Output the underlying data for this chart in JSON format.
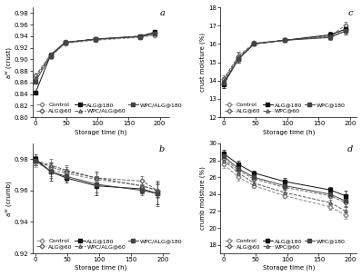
{
  "x": [
    0,
    24,
    48,
    96,
    168,
    192
  ],
  "panel_a": {
    "title": "a",
    "ylabel": "aᵂ (crust)",
    "xlabel": "Storage time (h)",
    "ylim": [
      0.8,
      0.99
    ],
    "yticks": [
      0.8,
      0.82,
      0.84,
      0.86,
      0.88,
      0.9,
      0.92,
      0.94,
      0.96,
      0.98
    ],
    "xticks": [
      0,
      50,
      100,
      150,
      200
    ],
    "xlim": [
      -5,
      215
    ],
    "series": {
      "Control": {
        "y": [
          0.868,
          0.905,
          0.928,
          0.933,
          0.938,
          0.942
        ],
        "err": [
          0.004,
          0.005,
          0.003,
          0.003,
          0.003,
          0.003
        ],
        "ls": "--",
        "marker": "D",
        "color": "#888888",
        "mfc": "white"
      },
      "ALG@60": {
        "y": [
          0.872,
          0.908,
          0.93,
          0.935,
          0.94,
          0.946
        ],
        "err": [
          0.003,
          0.004,
          0.003,
          0.003,
          0.003,
          0.003
        ],
        "ls": "--",
        "marker": "D",
        "color": "#666666",
        "mfc": "white"
      },
      "ALG@180": {
        "y": [
          0.843,
          0.907,
          0.929,
          0.935,
          0.94,
          0.947
        ],
        "err": [
          0.003,
          0.004,
          0.003,
          0.003,
          0.003,
          0.003
        ],
        "ls": "-",
        "marker": "s",
        "color": "#111111",
        "mfc": "#111111"
      },
      "WPC/ALG@60": {
        "y": [
          0.868,
          0.908,
          0.93,
          0.934,
          0.94,
          0.944
        ],
        "err": [
          0.003,
          0.004,
          0.003,
          0.003,
          0.003,
          0.003
        ],
        "ls": "--",
        "marker": "^",
        "color": "#555555",
        "mfc": "white"
      },
      "WPC/ALG@180": {
        "y": [
          0.862,
          0.906,
          0.929,
          0.935,
          0.939,
          0.944
        ],
        "err": [
          0.003,
          0.004,
          0.003,
          0.003,
          0.003,
          0.003
        ],
        "ls": "-",
        "marker": "s",
        "color": "#444444",
        "mfc": "#444444"
      }
    }
  },
  "panel_b": {
    "title": "b",
    "ylabel": "aᵂ (crumb)",
    "xlabel": "Storage time (h)",
    "ylim": [
      0.92,
      0.99
    ],
    "yticks": [
      0.92,
      0.94,
      0.96,
      0.98
    ],
    "xticks": [
      0,
      50,
      100,
      150,
      200
    ],
    "xlim": [
      -5,
      210
    ],
    "series": {
      "Control": {
        "y": [
          0.978,
          0.973,
          0.971,
          0.967,
          0.963,
          0.96
        ],
        "err": [
          0.003,
          0.004,
          0.003,
          0.004,
          0.003,
          0.005
        ],
        "ls": "--",
        "marker": "D",
        "color": "#888888",
        "mfc": "white"
      },
      "ALG@60": {
        "y": [
          0.979,
          0.975,
          0.972,
          0.968,
          0.966,
          0.96
        ],
        "err": [
          0.003,
          0.003,
          0.003,
          0.004,
          0.003,
          0.004
        ],
        "ls": "--",
        "marker": "D",
        "color": "#666666",
        "mfc": "white"
      },
      "ALG@180": {
        "y": [
          0.98,
          0.972,
          0.968,
          0.963,
          0.961,
          0.958
        ],
        "err": [
          0.003,
          0.006,
          0.003,
          0.006,
          0.003,
          0.007
        ],
        "ls": "-",
        "marker": "s",
        "color": "#111111",
        "mfc": "#111111"
      },
      "WPC/ALG@60": {
        "y": [
          0.979,
          0.976,
          0.973,
          0.968,
          0.963,
          0.96
        ],
        "err": [
          0.003,
          0.004,
          0.003,
          0.004,
          0.003,
          0.004
        ],
        "ls": "--",
        "marker": "^",
        "color": "#555555",
        "mfc": "white"
      },
      "WPC/ALG@180": {
        "y": [
          0.979,
          0.972,
          0.969,
          0.964,
          0.96,
          0.958
        ],
        "err": [
          0.003,
          0.004,
          0.003,
          0.005,
          0.003,
          0.008
        ],
        "ls": "-",
        "marker": "s",
        "color": "#444444",
        "mfc": "#444444"
      }
    }
  },
  "panel_c": {
    "title": "c",
    "ylabel": "crust moisture (%)",
    "xlabel": "Storage time (h)",
    "ylim": [
      12,
      18
    ],
    "yticks": [
      12,
      13,
      14,
      15,
      16,
      17,
      18
    ],
    "xticks": [
      0,
      50,
      100,
      150,
      200
    ],
    "xlim": [
      -5,
      210
    ],
    "series": {
      "Control": {
        "y": [
          13.8,
          15.2,
          16.0,
          16.2,
          16.4,
          16.8
        ],
        "err": [
          0.2,
          0.2,
          0.1,
          0.1,
          0.15,
          0.2
        ],
        "ls": "--",
        "marker": "D",
        "color": "#888888",
        "mfc": "white"
      },
      "ALG@60": {
        "y": [
          14.1,
          15.35,
          16.05,
          16.2,
          16.45,
          17.0
        ],
        "err": [
          0.2,
          0.2,
          0.1,
          0.1,
          0.15,
          0.2
        ],
        "ls": "--",
        "marker": "D",
        "color": "#666666",
        "mfc": "white"
      },
      "ALG@180": {
        "y": [
          13.8,
          15.2,
          16.0,
          16.2,
          16.5,
          16.8
        ],
        "err": [
          0.2,
          0.2,
          0.1,
          0.1,
          0.15,
          0.2
        ],
        "ls": "-",
        "marker": "s",
        "color": "#111111",
        "mfc": "#111111"
      },
      "WPC@60": {
        "y": [
          14.0,
          15.3,
          16.0,
          16.2,
          16.4,
          16.7
        ],
        "err": [
          0.2,
          0.2,
          0.1,
          0.1,
          0.15,
          0.2
        ],
        "ls": "--",
        "marker": "^",
        "color": "#555555",
        "mfc": "white"
      },
      "WPC@180": {
        "y": [
          13.9,
          15.2,
          16.0,
          16.2,
          16.35,
          16.7
        ],
        "err": [
          0.2,
          0.2,
          0.1,
          0.1,
          0.15,
          0.2
        ],
        "ls": "-",
        "marker": "s",
        "color": "#444444",
        "mfc": "#444444"
      }
    }
  },
  "panel_d": {
    "title": "d",
    "ylabel": "crumb moisture (%)",
    "xlabel": "Storage time (h)",
    "ylim": [
      17,
      30
    ],
    "yticks": [
      18,
      20,
      22,
      24,
      26,
      28,
      30
    ],
    "xticks": [
      0,
      50,
      100,
      150,
      200
    ],
    "xlim": [
      -5,
      210
    ],
    "series": {
      "Control": {
        "y": [
          27.5,
          26.0,
          25.0,
          23.8,
          22.5,
          21.5
        ],
        "err": [
          0.4,
          0.4,
          0.3,
          0.3,
          0.3,
          0.4
        ],
        "ls": "--",
        "marker": "D",
        "color": "#888888",
        "mfc": "white"
      },
      "ALG@60": {
        "y": [
          28.2,
          26.8,
          25.8,
          24.8,
          23.8,
          23.0
        ],
        "err": [
          0.4,
          0.4,
          0.3,
          0.3,
          0.3,
          0.5
        ],
        "ls": "--",
        "marker": "D",
        "color": "#666666",
        "mfc": "white"
      },
      "ALG@180": {
        "y": [
          28.8,
          27.5,
          26.5,
          25.5,
          24.5,
          23.8
        ],
        "err": [
          0.4,
          0.5,
          0.3,
          0.4,
          0.3,
          0.6
        ],
        "ls": "-",
        "marker": "s",
        "color": "#111111",
        "mfc": "#111111"
      },
      "WPC@60": {
        "y": [
          28.0,
          26.5,
          25.3,
          24.2,
          23.0,
          22.0
        ],
        "err": [
          0.4,
          0.4,
          0.3,
          0.3,
          0.3,
          0.5
        ],
        "ls": "--",
        "marker": "^",
        "color": "#555555",
        "mfc": "white"
      },
      "WPC@180": {
        "y": [
          28.5,
          27.0,
          26.0,
          25.0,
          24.0,
          23.2
        ],
        "err": [
          0.4,
          0.5,
          0.3,
          0.4,
          0.3,
          0.6
        ],
        "ls": "-",
        "marker": "s",
        "color": "#444444",
        "mfc": "#444444"
      }
    }
  },
  "legend_labels_ab": [
    "Control",
    "ALG@60",
    "ALG@180",
    "WPC/ALG@60",
    "WPC/ALG@180"
  ],
  "legend_labels_cd": [
    "Control",
    "ALG@60",
    "ALG@180",
    "WPC@60",
    "WPC@180"
  ],
  "fontsize": 5.0,
  "marker_size": 2.5,
  "lw": 0.7
}
